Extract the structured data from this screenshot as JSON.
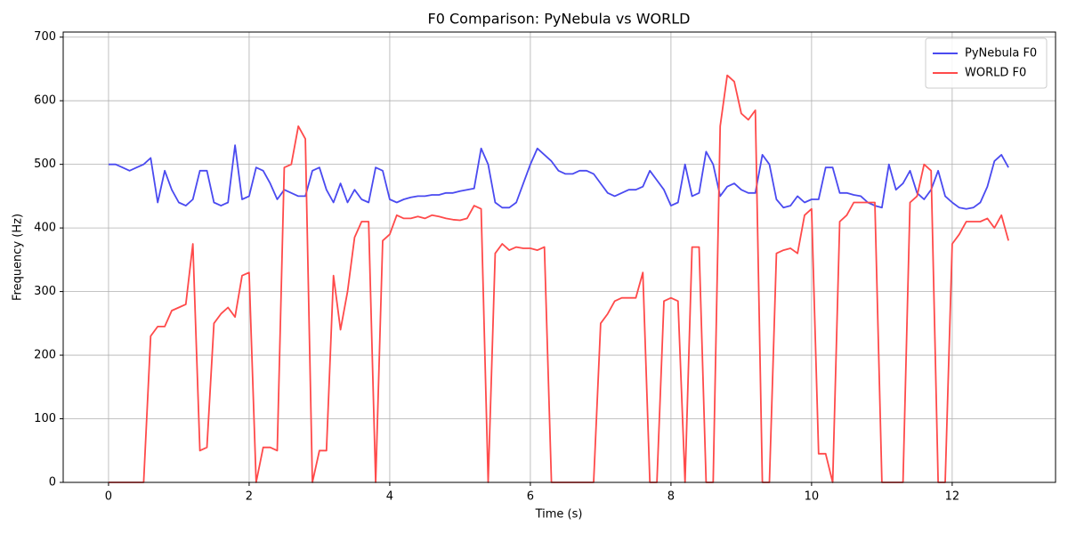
{
  "chart_data": {
    "type": "line",
    "title": "F0 Comparison: PyNebula vs WORLD",
    "xlabel": "Time (s)",
    "ylabel": "Frequency (Hz)",
    "x": [
      0,
      0.1,
      0.2,
      0.3,
      0.4,
      0.5,
      0.6,
      0.7,
      0.8,
      0.9,
      1.0,
      1.1,
      1.2,
      1.3,
      1.4,
      1.5,
      1.6,
      1.7,
      1.8,
      1.9,
      2.0,
      2.1,
      2.2,
      2.3,
      2.4,
      2.5,
      2.6,
      2.7,
      2.8,
      2.9,
      3.0,
      3.1,
      3.2,
      3.3,
      3.4,
      3.5,
      3.6,
      3.7,
      3.8,
      3.9,
      4.0,
      4.1,
      4.2,
      4.3,
      4.4,
      4.5,
      4.6,
      4.7,
      4.8,
      4.9,
      5.0,
      5.1,
      5.2,
      5.3,
      5.4,
      5.5,
      5.6,
      5.7,
      5.8,
      5.9,
      6.0,
      6.1,
      6.2,
      6.3,
      6.4,
      6.5,
      6.6,
      6.7,
      6.8,
      6.9,
      7.0,
      7.1,
      7.2,
      7.3,
      7.4,
      7.5,
      7.6,
      7.7,
      7.8,
      7.9,
      8.0,
      8.1,
      8.2,
      8.3,
      8.4,
      8.5,
      8.6,
      8.7,
      8.8,
      8.9,
      9.0,
      9.1,
      9.2,
      9.3,
      9.4,
      9.5,
      9.6,
      9.7,
      9.8,
      9.9,
      10.0,
      10.1,
      10.2,
      10.3,
      10.4,
      10.5,
      10.6,
      10.7,
      10.8,
      10.9,
      11.0,
      11.1,
      11.2,
      11.3,
      11.4,
      11.5,
      11.6,
      11.7,
      11.8,
      11.9,
      12.0,
      12.1,
      12.2,
      12.3,
      12.4,
      12.5,
      12.6,
      12.7,
      12.8
    ],
    "series": [
      {
        "name": "PyNebula F0",
        "color": "#4a4af0",
        "values": [
          500,
          500,
          495,
          490,
          495,
          500,
          510,
          440,
          490,
          460,
          440,
          435,
          445,
          490,
          490,
          440,
          435,
          440,
          530,
          445,
          450,
          495,
          490,
          470,
          445,
          460,
          455,
          450,
          450,
          490,
          495,
          460,
          440,
          470,
          440,
          460,
          445,
          440,
          495,
          490,
          445,
          440,
          445,
          448,
          450,
          450,
          452,
          452,
          455,
          455,
          458,
          460,
          462,
          525,
          500,
          440,
          432,
          432,
          440,
          470,
          500,
          525,
          515,
          505,
          490,
          485,
          485,
          490,
          490,
          485,
          470,
          455,
          450,
          455,
          460,
          460,
          465,
          490,
          475,
          460,
          435,
          440,
          500,
          450,
          455,
          520,
          500,
          450,
          465,
          470,
          460,
          455,
          455,
          515,
          500,
          445,
          432,
          435,
          450,
          440,
          445,
          445,
          495,
          495,
          455,
          455,
          452,
          450,
          440,
          435,
          432,
          500,
          460,
          470,
          490,
          455,
          445,
          460,
          490,
          450,
          440,
          432,
          430,
          432,
          440,
          465,
          505,
          515,
          495
        ]
      },
      {
        "name": "WORLD F0",
        "color": "#ff4a4a",
        "values": [
          0,
          0,
          0,
          0,
          0,
          0,
          230,
          245,
          245,
          270,
          275,
          280,
          375,
          50,
          55,
          250,
          265,
          275,
          260,
          325,
          330,
          0,
          55,
          55,
          50,
          495,
          500,
          560,
          540,
          0,
          50,
          50,
          325,
          240,
          300,
          385,
          410,
          410,
          0,
          380,
          390,
          420,
          415,
          415,
          418,
          415,
          420,
          418,
          415,
          413,
          412,
          415,
          435,
          430,
          0,
          360,
          375,
          365,
          370,
          368,
          368,
          365,
          370,
          0,
          0,
          0,
          0,
          0,
          0,
          0,
          250,
          265,
          285,
          290,
          290,
          290,
          330,
          0,
          0,
          285,
          290,
          285,
          0,
          370,
          370,
          0,
          0,
          560,
          640,
          630,
          580,
          570,
          585,
          0,
          0,
          360,
          365,
          368,
          360,
          420,
          430,
          45,
          45,
          0,
          410,
          420,
          440,
          440,
          440,
          440,
          0,
          0,
          0,
          0,
          440,
          450,
          500,
          490,
          0,
          0,
          375,
          390,
          410,
          410,
          410,
          415,
          400,
          420,
          380
        ]
      }
    ],
    "xlim": [
      -0.645,
      13.47
    ],
    "ylim": [
      0,
      708
    ],
    "xticks": [
      0,
      2,
      4,
      6,
      8,
      10,
      12
    ],
    "yticks": [
      0,
      100,
      200,
      300,
      400,
      500,
      600,
      700
    ],
    "grid": true,
    "legend": "upper-right"
  }
}
